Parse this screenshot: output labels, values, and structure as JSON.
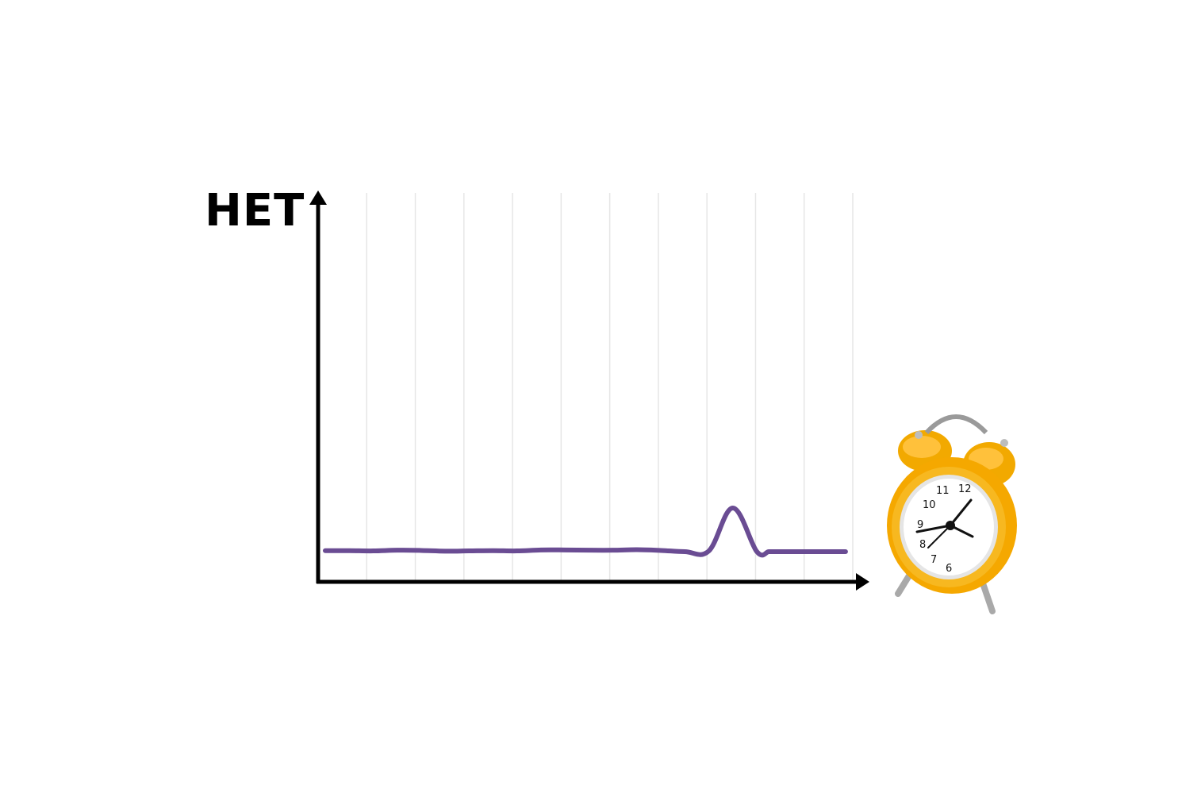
{
  "chart_data": {
    "type": "line",
    "ylabel": "HET",
    "xlabel": "",
    "title": "",
    "grid": true,
    "x": [
      0,
      0.5,
      1,
      1.5,
      2,
      2.5,
      3,
      3.5,
      4,
      4.5,
      5,
      5.5,
      6,
      6.5,
      7,
      7.5,
      8,
      8.5,
      9,
      9.25,
      9.4,
      9.55,
      9.75,
      10,
      10.5,
      10.85
    ],
    "series": [
      {
        "values": [
          6.5,
          6.5,
          6.45,
          6.6,
          6.55,
          6.4,
          6.45,
          6.5,
          6.45,
          6.65,
          6.65,
          6.6,
          6.6,
          6.7,
          6.55,
          6.3,
          6.45,
          15.4,
          6.3,
          6.3,
          6.3,
          6.3,
          6.3,
          6.3,
          6.3,
          6.3
        ],
        "color": "#6a4c93"
      }
    ],
    "xlim": [
      0,
      11
    ],
    "ylim": [
      0,
      80
    ],
    "grid_count": 11,
    "colors": {
      "axis": "#000000",
      "grid": "#e6e6e6",
      "line": "#6a4c93"
    },
    "decorations": [
      "alarm-clock-icon"
    ]
  }
}
